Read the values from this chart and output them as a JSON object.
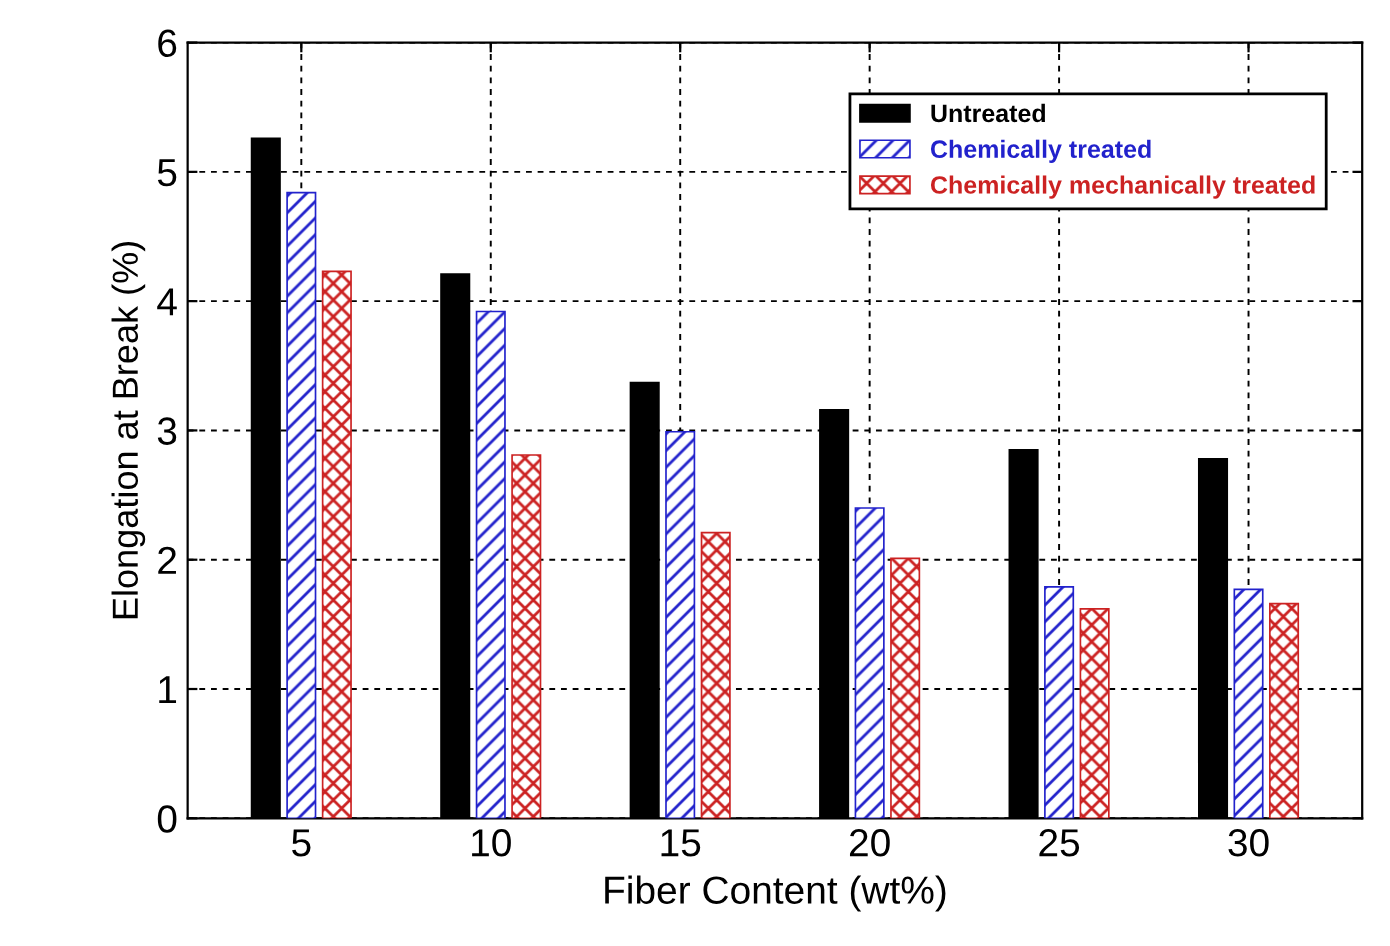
{
  "chart_data": {
    "type": "bar",
    "xlabel": "Fiber Content (wt%)",
    "ylabel": "Elongation at Break (%)",
    "categories": [
      "5",
      "10",
      "15",
      "20",
      "25",
      "30"
    ],
    "series": [
      {
        "name": "Untreated",
        "color": "#000000",
        "values": [
          5.26,
          4.21,
          3.37,
          3.16,
          2.85,
          2.78
        ]
      },
      {
        "name": "Chemically treated",
        "color": "#2222cc",
        "values": [
          4.84,
          3.92,
          2.99,
          2.4,
          1.79,
          1.77
        ]
      },
      {
        "name": "Chemically mechanically treated",
        "color": "#cc2222",
        "values": [
          4.23,
          2.81,
          2.21,
          2.01,
          1.62,
          1.66
        ]
      }
    ],
    "ylim": [
      0,
      6
    ],
    "yticks": [
      0,
      1,
      2,
      3,
      4,
      5,
      6
    ],
    "grid": true,
    "legend": "top right"
  }
}
